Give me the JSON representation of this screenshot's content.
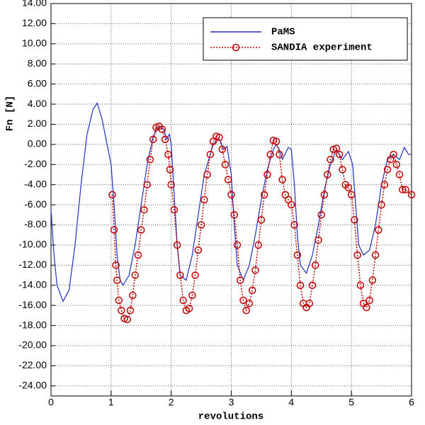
{
  "chart_data": {
    "type": "line",
    "xlabel": "revolutions",
    "ylabel": "Fn [N]",
    "xlim": [
      0,
      6
    ],
    "ylim": [
      -25,
      14
    ],
    "xticks": [
      0,
      1,
      2,
      3,
      4,
      5,
      6
    ],
    "yticks": [
      {
        "value": -24,
        "label": "-24.00"
      },
      {
        "value": -22,
        "label": "-22.00"
      },
      {
        "value": -20,
        "label": "-20.00"
      },
      {
        "value": -18,
        "label": "-18.00"
      },
      {
        "value": -16,
        "label": "-16.00"
      },
      {
        "value": -14,
        "label": "-14.00"
      },
      {
        "value": -12,
        "label": "-12.00"
      },
      {
        "value": -10,
        "label": "-10.00"
      },
      {
        "value": -8,
        "label": "-8.00"
      },
      {
        "value": -6,
        "label": "-6.00"
      },
      {
        "value": -4,
        "label": "-4.00"
      },
      {
        "value": -2,
        "label": "-2.00"
      },
      {
        "value": 0,
        "label": "0.00"
      },
      {
        "value": 2,
        "label": "2.00"
      },
      {
        "value": 4,
        "label": "4.00"
      },
      {
        "value": 6,
        "label": "6.00"
      },
      {
        "value": 8,
        "label": "8.00"
      },
      {
        "value": 10,
        "label": "10.00"
      },
      {
        "value": 12,
        "label": "12.00"
      },
      {
        "value": 14,
        "label": "14.00"
      }
    ],
    "grid": true,
    "legend": "upper right",
    "series": [
      {
        "name": "PaMS",
        "color": "#2030c0",
        "marker": false,
        "x": [
          0,
          0.05,
          0.1,
          0.2,
          0.3,
          0.4,
          0.5,
          0.6,
          0.7,
          0.77,
          0.85,
          0.95,
          1.0,
          1.05,
          1.1,
          1.15,
          1.2,
          1.3,
          1.4,
          1.5,
          1.6,
          1.7,
          1.8,
          1.88,
          1.92,
          1.97,
          2.0,
          2.05,
          2.1,
          2.15,
          2.25,
          2.35,
          2.45,
          2.55,
          2.65,
          2.7,
          2.78,
          2.83,
          2.87,
          2.93,
          3.0,
          3.05,
          3.1,
          3.2,
          3.3,
          3.4,
          3.5,
          3.6,
          3.7,
          3.75,
          3.8,
          3.85,
          3.95,
          4.0,
          4.05,
          4.1,
          4.15,
          4.25,
          4.35,
          4.45,
          4.55,
          4.65,
          4.75,
          4.85,
          4.95,
          5.02,
          5.07,
          5.12,
          5.2,
          5.3,
          5.4,
          5.5,
          5.6,
          5.7,
          5.8,
          5.88,
          5.95,
          6.0
        ],
        "values": [
          -6.5,
          -11,
          -14,
          -15.6,
          -14.5,
          -10,
          -4,
          1,
          3.5,
          4.1,
          2.5,
          -0.5,
          -2,
          -6,
          -11,
          -13.5,
          -14,
          -13,
          -10,
          -6,
          -2,
          0.8,
          1.8,
          1.5,
          0.5,
          1,
          0,
          -5,
          -10,
          -13,
          -13.5,
          -11,
          -7,
          -3,
          -1,
          0,
          0.6,
          0.2,
          -0.5,
          -0.2,
          -3,
          -8,
          -12,
          -13.5,
          -12,
          -9,
          -5.5,
          -2.5,
          -0.5,
          0,
          -0.5,
          -1.5,
          -0.3,
          -0.5,
          -4,
          -9,
          -12,
          -12.8,
          -11,
          -8,
          -4.5,
          -2,
          -0.5,
          -1.5,
          -0.7,
          -2,
          -6,
          -10,
          -11,
          -10.5,
          -8,
          -4,
          -1.5,
          -1,
          -1.5,
          -0.3,
          -1,
          -1
        ]
      },
      {
        "name": "SANDIA experiment",
        "color": "#c00000",
        "marker": true,
        "x": [
          1.02,
          1.05,
          1.08,
          1.1,
          1.13,
          1.17,
          1.22,
          1.27,
          1.32,
          1.36,
          1.4,
          1.45,
          1.5,
          1.55,
          1.6,
          1.65,
          1.7,
          1.75,
          1.8,
          1.85,
          1.9,
          1.95,
          1.98,
          2.0,
          2.05,
          2.1,
          2.15,
          2.2,
          2.25,
          2.3,
          2.35,
          2.4,
          2.45,
          2.5,
          2.55,
          2.6,
          2.65,
          2.7,
          2.75,
          2.8,
          2.85,
          2.9,
          2.95,
          3.0,
          3.05,
          3.1,
          3.15,
          3.2,
          3.25,
          3.3,
          3.35,
          3.4,
          3.45,
          3.5,
          3.55,
          3.6,
          3.65,
          3.7,
          3.75,
          3.8,
          3.85,
          3.9,
          3.95,
          4.0,
          4.05,
          4.1,
          4.15,
          4.2,
          4.25,
          4.3,
          4.35,
          4.4,
          4.45,
          4.5,
          4.55,
          4.6,
          4.65,
          4.7,
          4.75,
          4.8,
          4.85,
          4.9,
          4.95,
          5.0,
          5.05,
          5.1,
          5.15,
          5.2,
          5.25,
          5.3,
          5.35,
          5.4,
          5.45,
          5.5,
          5.55,
          5.6,
          5.65,
          5.7,
          5.75,
          5.8,
          5.85,
          5.9,
          6.0
        ],
        "values": [
          -5,
          -8.5,
          -12,
          -13.5,
          -15.5,
          -16.5,
          -17.3,
          -17.4,
          -16.5,
          -15,
          -13,
          -11,
          -8.5,
          -6.5,
          -4,
          -1.5,
          0.5,
          1.7,
          1.8,
          1.5,
          0.5,
          -1,
          -2.5,
          -4,
          -6.5,
          -10,
          -13,
          -15.5,
          -16.5,
          -16.3,
          -15,
          -13,
          -10.5,
          -8,
          -5.5,
          -3,
          -1,
          0.3,
          0.8,
          0.7,
          -0.5,
          -2,
          -3.5,
          -5,
          -7,
          -10,
          -13.5,
          -15.5,
          -16.5,
          -15.8,
          -14.5,
          -12.5,
          -10,
          -7.5,
          -5,
          -3,
          -1,
          0.4,
          0.3,
          -1,
          -3.5,
          -5,
          -5.5,
          -6,
          -8,
          -11,
          -14,
          -15.8,
          -16.2,
          -15.8,
          -14,
          -12,
          -9.5,
          -7,
          -5,
          -3,
          -1.5,
          -0.5,
          -0.4,
          -1,
          -2.5,
          -4,
          -4.3,
          -5,
          -7.5,
          -11,
          -14,
          -15.8,
          -16.2,
          -15.5,
          -13.5,
          -11,
          -8.5,
          -6,
          -4,
          -2.5,
          -1.5,
          -1,
          -2,
          -3,
          -4.5,
          -4.5,
          -5
        ]
      }
    ]
  }
}
